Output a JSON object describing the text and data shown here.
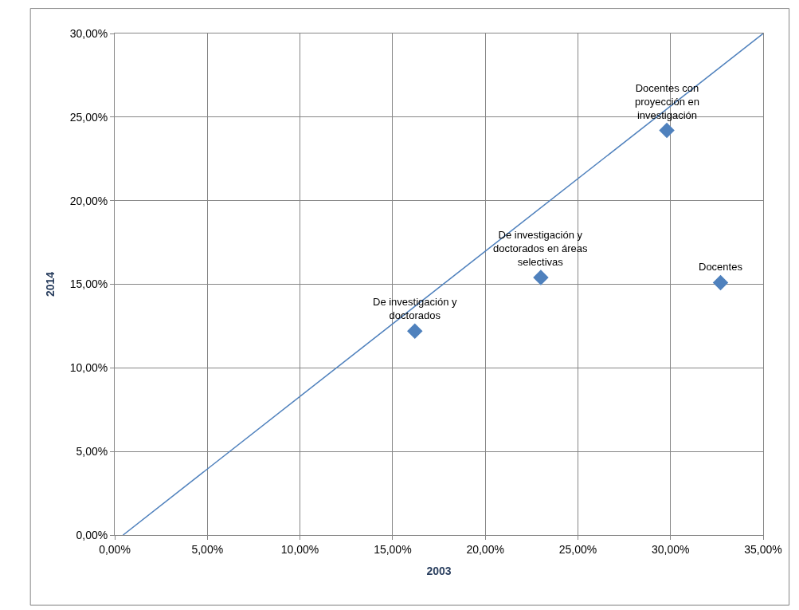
{
  "chart_data": {
    "type": "scatter",
    "xlabel": "2003",
    "ylabel": "2014",
    "series": [
      {
        "color": "#4f81bd",
        "marker": "diamond",
        "x": [
          16.2,
          23.0,
          29.8,
          32.7
        ],
        "values": [
          12.2,
          15.4,
          24.2,
          15.1
        ]
      },
      {
        "type": "line",
        "color": "#4f81bd",
        "marker": "none",
        "line_style": "solid",
        "x": [
          0.45,
          35
        ],
        "values": [
          0,
          30
        ]
      }
    ],
    "annotations": [
      {
        "text": "De investigación y\ndoctorados",
        "x": 16.2,
        "y": 12.2
      },
      {
        "text": "De investigación y\ndoctorados en áreas\nselectivas",
        "x": 23.0,
        "y": 15.4
      },
      {
        "text": "Docentes con\nproyección en\ninvestigación",
        "x": 29.8,
        "y": 24.2
      },
      {
        "text": "Docentes",
        "x": 32.7,
        "y": 15.1
      }
    ],
    "xlim": [
      0,
      35
    ],
    "xticks": [
      {
        "value": 0,
        "label": "0,00%"
      },
      {
        "value": 5,
        "label": "5,00%"
      },
      {
        "value": 10,
        "label": "10,00%"
      },
      {
        "value": 15,
        "label": "15,00%"
      },
      {
        "value": 20,
        "label": "20,00%"
      },
      {
        "value": 25,
        "label": "25,00%"
      },
      {
        "value": 30,
        "label": "30,00%"
      },
      {
        "value": 35,
        "label": "35,00%"
      }
    ],
    "ylim": [
      0,
      30
    ],
    "yticks": [
      {
        "value": 0,
        "label": "0,00%"
      },
      {
        "value": 5,
        "label": "5,00%"
      },
      {
        "value": 10,
        "label": "10,00%"
      },
      {
        "value": 15,
        "label": "15,00%"
      },
      {
        "value": 20,
        "label": "20,00%"
      },
      {
        "value": 25,
        "label": "25,00%"
      },
      {
        "value": 30,
        "label": "30,00%"
      }
    ],
    "grid": true
  }
}
